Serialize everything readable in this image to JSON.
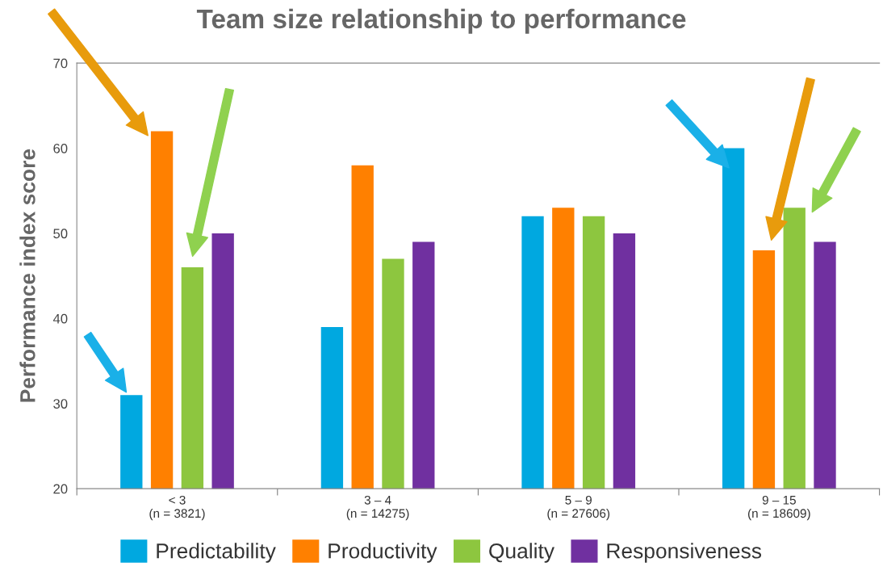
{
  "chart_data": {
    "type": "bar",
    "title": "Team size relationship to performance",
    "ylabel": "Performance index score",
    "categories": [
      "< 3\n(n = 3821)",
      "3 – 4\n(n = 14275)",
      "5 – 9\n(n = 27606)",
      "9 – 15\n(n = 18609)"
    ],
    "series": [
      {
        "name": "Predictability",
        "color": "#00a8e0",
        "values": [
          31,
          39,
          52,
          60
        ]
      },
      {
        "name": "Productivity",
        "color": "#ff8000",
        "values": [
          62,
          58,
          53,
          48
        ]
      },
      {
        "name": "Quality",
        "color": "#8dc63f",
        "values": [
          46,
          47,
          52,
          53
        ]
      },
      {
        "name": "Responsiveness",
        "color": "#7030a0",
        "values": [
          50,
          49,
          50,
          49
        ]
      }
    ],
    "ylim": [
      20,
      70
    ],
    "yticks": [
      20,
      30,
      40,
      50,
      60,
      70
    ],
    "grid": false,
    "legend": "bottom"
  }
}
